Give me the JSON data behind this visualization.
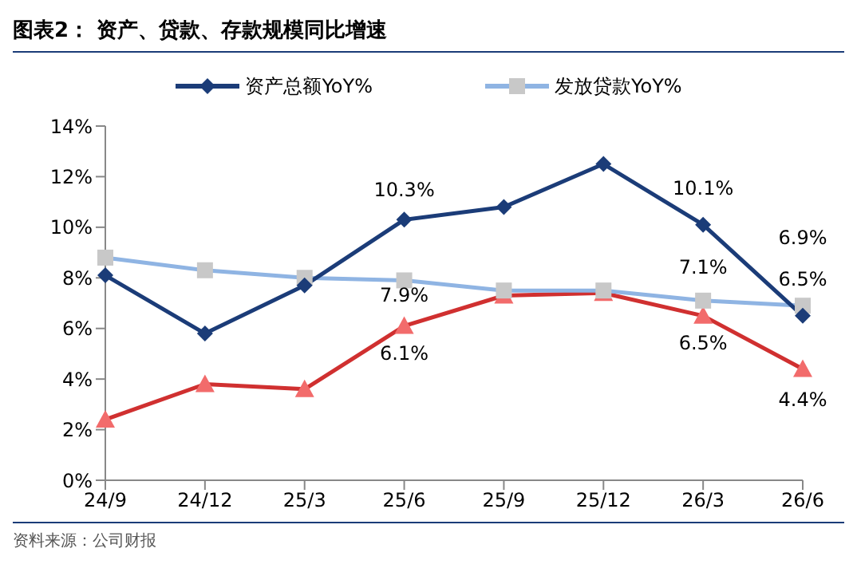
{
  "chart_data": {
    "type": "line",
    "title": "图表2：  资产、贷款、存款规模同比增速",
    "categories": [
      "24/9",
      "24/12",
      "25/3",
      "25/6",
      "25/9",
      "25/12",
      "26/3",
      "26/6"
    ],
    "series": [
      {
        "name": "资产总额YoY%",
        "color": "#1b3c78",
        "marker": "diamond",
        "values": [
          8.1,
          5.8,
          7.7,
          10.3,
          10.8,
          12.5,
          10.1,
          6.5
        ],
        "value_labels": [
          null,
          null,
          null,
          "10.3%",
          null,
          null,
          "10.1%",
          "6.5%"
        ]
      },
      {
        "name": "发放贷款YoY%",
        "color": "#8fb4e3",
        "marker": "square",
        "values": [
          8.8,
          8.3,
          8.0,
          7.9,
          7.5,
          7.5,
          7.1,
          6.9
        ],
        "value_labels": [
          null,
          null,
          null,
          "7.9%",
          null,
          null,
          "7.1%",
          "6.9%"
        ]
      },
      {
        "color": "#d03030",
        "marker": "triangle",
        "values": [
          2.4,
          3.8,
          3.6,
          6.1,
          7.3,
          7.4,
          6.5,
          4.4
        ],
        "value_labels": [
          null,
          null,
          null,
          "6.1%",
          null,
          null,
          "6.5%",
          "4.4%"
        ]
      }
    ],
    "ylim": [
      0,
      14
    ],
    "yticks": [
      {
        "value": 0,
        "label": "0%"
      },
      {
        "value": 2,
        "label": "2%"
      },
      {
        "value": 4,
        "label": "4%"
      },
      {
        "value": 6,
        "label": "6%"
      },
      {
        "value": 8,
        "label": "8%"
      },
      {
        "value": 10,
        "label": "10%"
      },
      {
        "value": 12,
        "label": "12%"
      },
      {
        "value": 14,
        "label": "14%"
      }
    ],
    "legend": "top",
    "grid": false,
    "line_style": "solid",
    "annotations": [
      "资料来源：公司财报"
    ]
  }
}
